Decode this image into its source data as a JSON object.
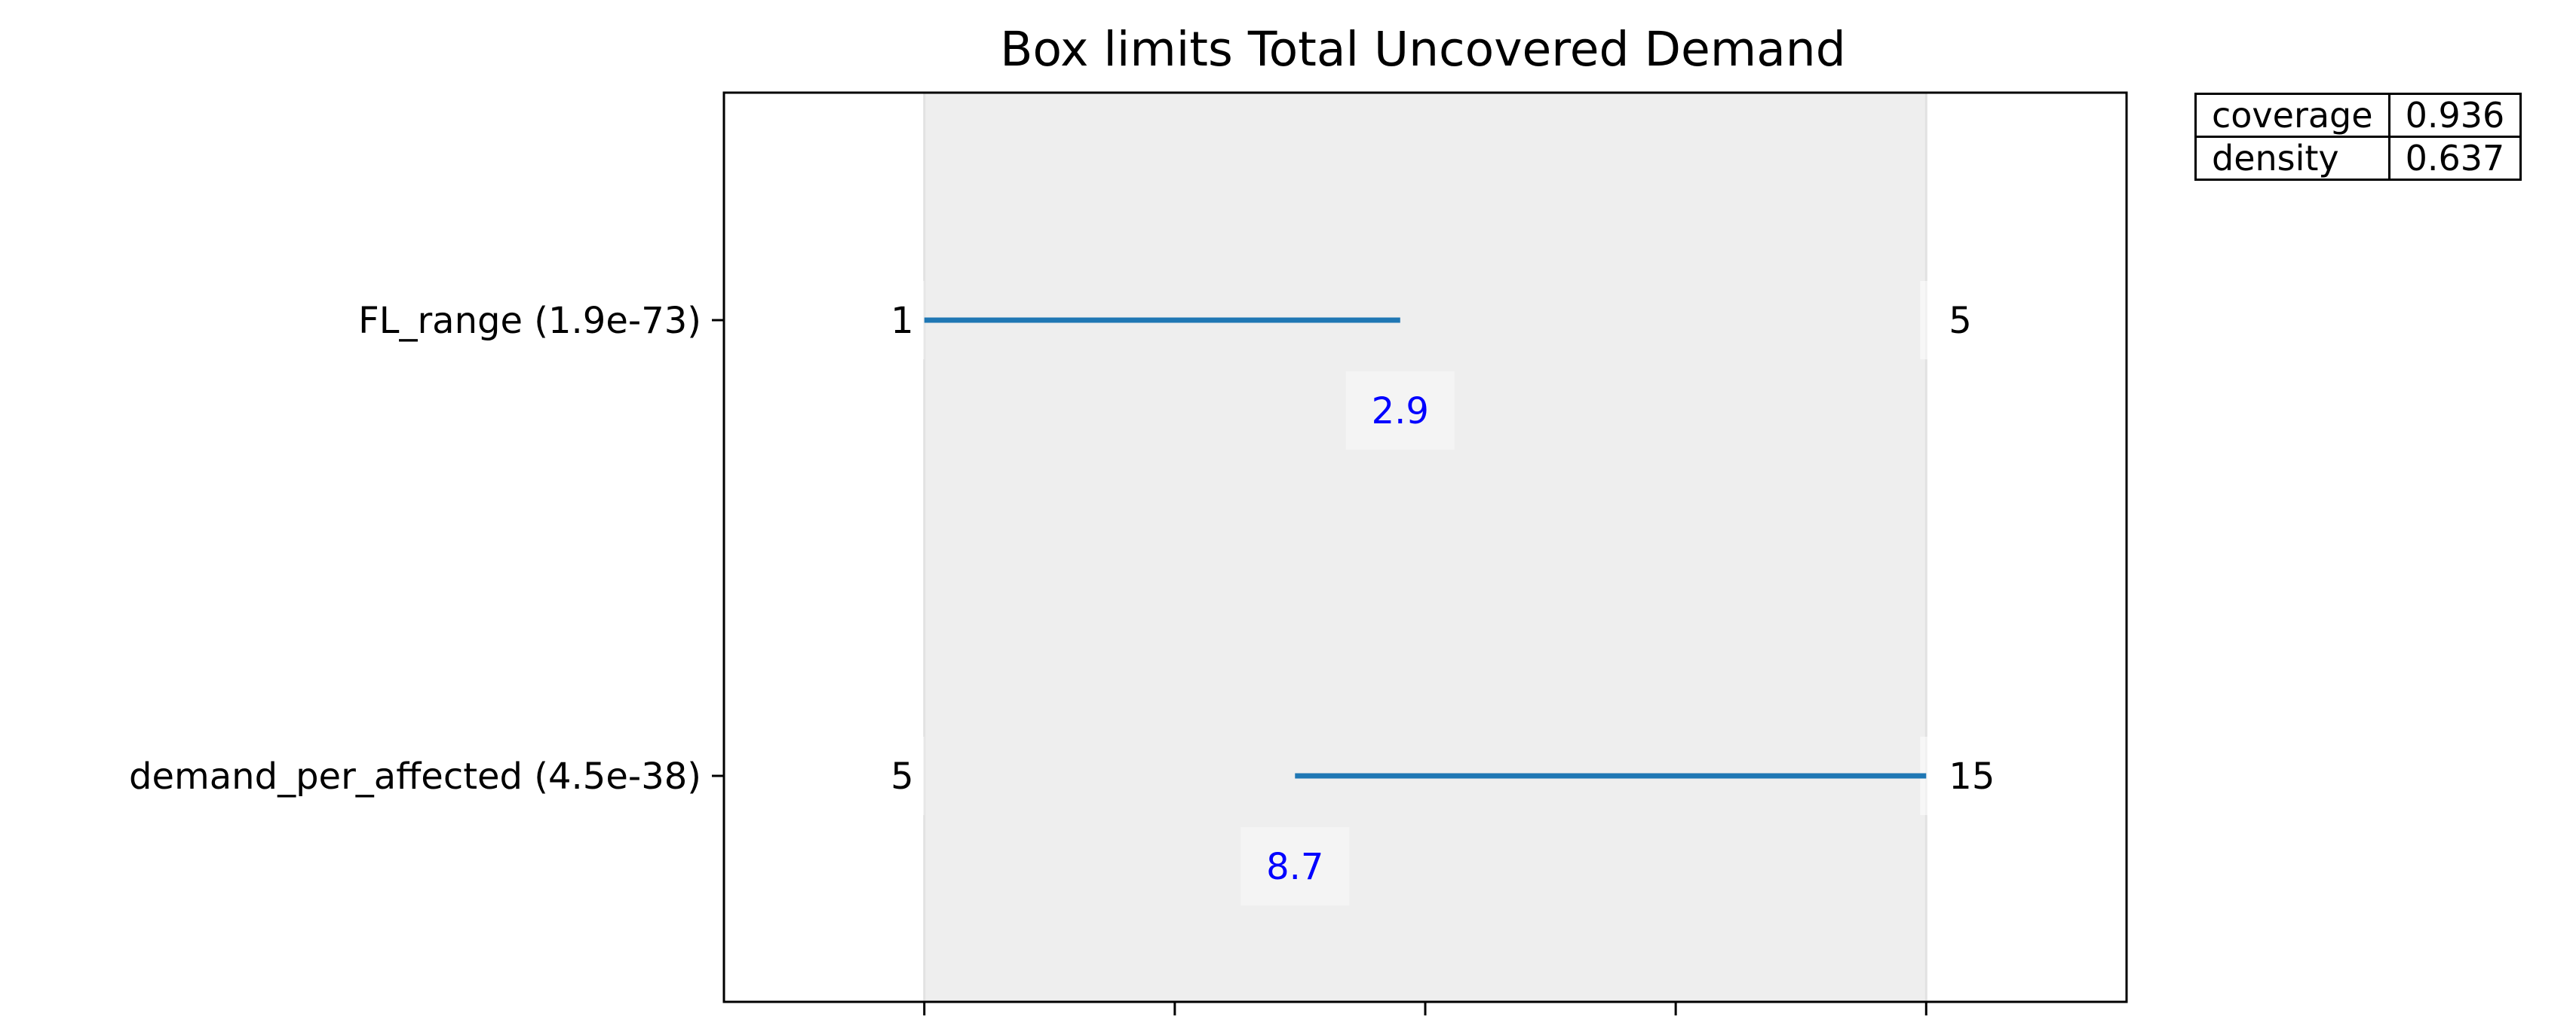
{
  "chart_data": {
    "type": "box-limits",
    "title": "Box limits Total Uncovered Demand",
    "xlim": [
      -0.2,
      1.2
    ],
    "x_ticks": [
      0,
      0.25,
      0.5,
      0.75,
      1
    ],
    "rows": [
      {
        "label": "FL_range (1.9e-73)",
        "range_min": 1,
        "range_max": 5,
        "range_min_label": "1",
        "range_max_label": "5",
        "box_low": 1,
        "box_high": 2.9,
        "value_label": "2.9"
      },
      {
        "label": "demand_per_affected (4.5e-38)",
        "range_min": 5,
        "range_max": 15,
        "range_min_label": "5",
        "range_max_label": "15",
        "box_low": 8.7,
        "box_high": 15,
        "value_label": "8.7"
      }
    ],
    "stats": [
      {
        "name": "coverage",
        "value": "0.936"
      },
      {
        "name": "density",
        "value": "0.637"
      }
    ],
    "colors": {
      "line": "#1f77b4",
      "value_label": "#0000ff",
      "band": "#eeeeee",
      "axes": "#000000"
    }
  }
}
